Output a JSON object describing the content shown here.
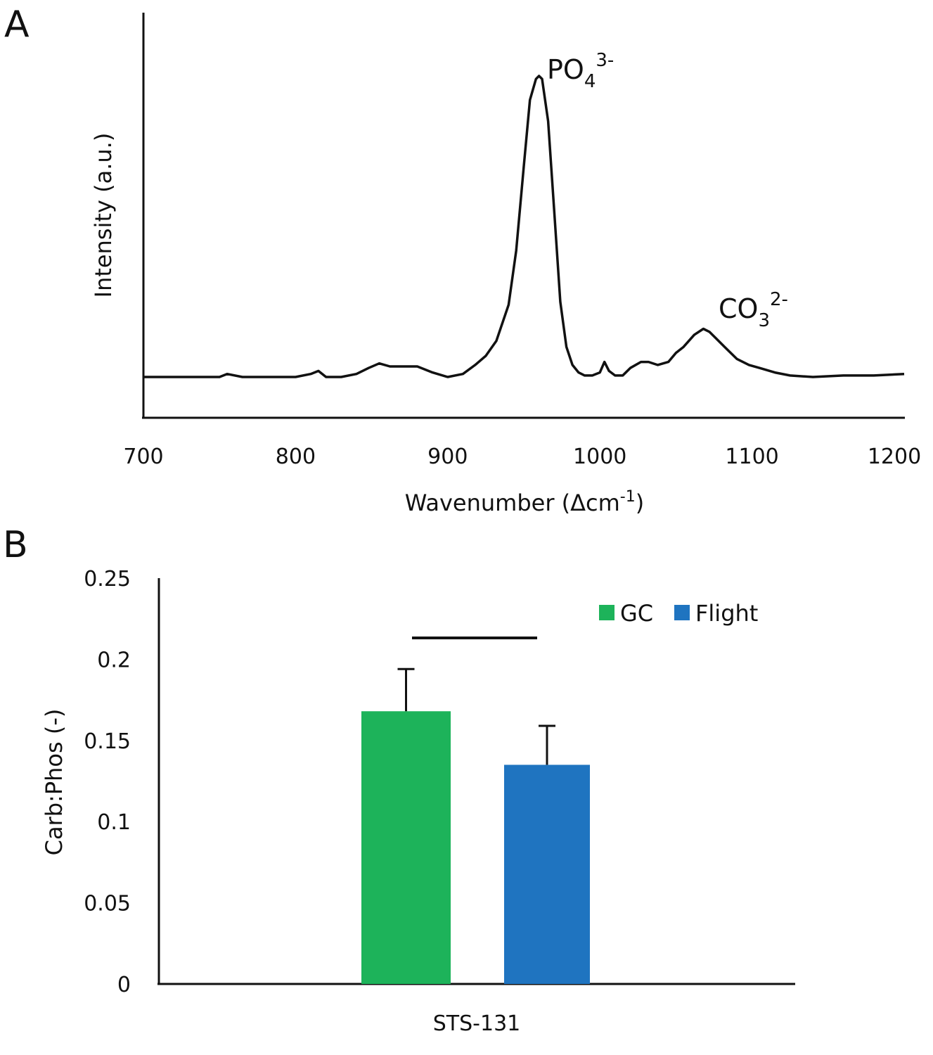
{
  "chart_data": [
    {
      "panel": "A",
      "type": "line",
      "title": "",
      "xlabel": "Wavenumber (Δcm",
      "xlabel_sup": "-1",
      "xlabel_close": ")",
      "ylabel": "Intensity (a.u.)",
      "xlim": [
        700,
        1200
      ],
      "xticks": [
        "700",
        "800",
        "900",
        "1000",
        "1100",
        "1200"
      ],
      "grid": false,
      "annotations": [
        {
          "base": "PO",
          "sub": "4",
          "sup": "3-",
          "x": 960
        },
        {
          "base": "CO",
          "sub": "3",
          "sup": "2-",
          "x": 1072
        }
      ],
      "series": [
        {
          "x": [
            700,
            750,
            755,
            765,
            800,
            810,
            815,
            820,
            830,
            840,
            848,
            855,
            862,
            870,
            880,
            890,
            900,
            910,
            918,
            925,
            932,
            940,
            945,
            950,
            954,
            958,
            960,
            962,
            966,
            970,
            974,
            978,
            982,
            986,
            990,
            995,
            1000,
            1003,
            1006,
            1010,
            1015,
            1020,
            1027,
            1032,
            1038,
            1045,
            1050,
            1055,
            1062,
            1068,
            1072,
            1076,
            1082,
            1090,
            1098,
            1105,
            1115,
            1125,
            1140,
            1160,
            1180,
            1200
          ],
          "y": [
            0,
            0,
            1,
            0,
            0,
            1,
            2,
            0,
            0,
            1,
            3,
            4.5,
            3.5,
            3.5,
            3.5,
            1.5,
            0,
            1,
            4,
            7,
            12,
            24,
            42,
            70,
            92,
            99,
            100,
            99,
            85,
            55,
            25,
            10,
            4,
            1.5,
            0.5,
            0.5,
            1.5,
            5,
            2,
            0.5,
            0.5,
            3,
            5,
            5,
            4,
            5,
            8,
            10,
            14,
            16,
            15,
            13,
            10,
            6,
            4,
            3,
            1.5,
            0.5,
            0,
            0.5,
            0.5,
            1
          ]
        }
      ]
    },
    {
      "panel": "B",
      "type": "bar",
      "title": "",
      "xlabel": "",
      "ylabel": "Carb:Phos (-)",
      "categories": [
        "STS-131"
      ],
      "ylim": [
        0,
        0.25
      ],
      "yticks": [
        "0",
        "0.05",
        "0.1",
        "0.15",
        "0.2",
        "0.25"
      ],
      "grid": false,
      "legend_position": "top-right",
      "series": [
        {
          "name": "GC",
          "values": [
            0.168
          ],
          "error": [
            0.026
          ],
          "color": "#1db35a"
        },
        {
          "name": "Flight",
          "values": [
            0.135
          ],
          "error": [
            0.024
          ],
          "color": "#1f74c0"
        }
      ],
      "significance_bar": true
    }
  ]
}
